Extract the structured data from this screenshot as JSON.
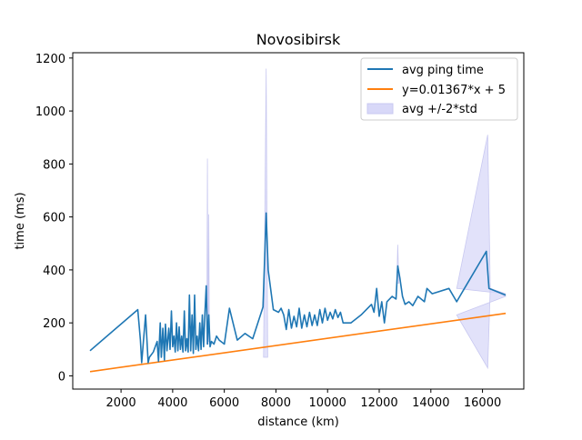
{
  "chart_data": {
    "type": "line",
    "title": "Novosibirsk",
    "xlabel": "distance (km)",
    "ylabel": "time (ms)",
    "xlim": [
      130,
      17600
    ],
    "ylim": [
      -50,
      1220
    ],
    "xticks": [
      2000,
      4000,
      6000,
      8000,
      10000,
      12000,
      14000,
      16000
    ],
    "yticks": [
      0,
      200,
      400,
      600,
      800,
      1000,
      1200
    ],
    "grid": false,
    "legend_position": "top-right",
    "colors": {
      "avg": "#1f77b4",
      "fit": "#ff7f0e",
      "band_fill": "#d8d8f8",
      "band_edge": "#c8c8f0"
    },
    "series": [
      {
        "name": "avg ping time",
        "points": [
          [
            800,
            95
          ],
          [
            2650,
            250
          ],
          [
            2750,
            135
          ],
          [
            2800,
            50
          ],
          [
            2950,
            230
          ],
          [
            3050,
            50
          ],
          [
            3100,
            70
          ],
          [
            3250,
            90
          ],
          [
            3400,
            130
          ],
          [
            3450,
            55
          ],
          [
            3520,
            200
          ],
          [
            3560,
            70
          ],
          [
            3620,
            180
          ],
          [
            3680,
            60
          ],
          [
            3720,
            195
          ],
          [
            3780,
            95
          ],
          [
            3850,
            180
          ],
          [
            3900,
            100
          ],
          [
            3950,
            245
          ],
          [
            4000,
            110
          ],
          [
            4050,
            150
          ],
          [
            4100,
            90
          ],
          [
            4150,
            200
          ],
          [
            4200,
            95
          ],
          [
            4250,
            185
          ],
          [
            4300,
            100
          ],
          [
            4350,
            150
          ],
          [
            4400,
            90
          ],
          [
            4450,
            245
          ],
          [
            4500,
            95
          ],
          [
            4550,
            140
          ],
          [
            4600,
            90
          ],
          [
            4650,
            305
          ],
          [
            4700,
            95
          ],
          [
            4750,
            230
          ],
          [
            4800,
            85
          ],
          [
            4850,
            305
          ],
          [
            4900,
            100
          ],
          [
            4950,
            150
          ],
          [
            5000,
            95
          ],
          [
            5050,
            200
          ],
          [
            5100,
            100
          ],
          [
            5150,
            230
          ],
          [
            5200,
            110
          ],
          [
            5250,
            240
          ],
          [
            5300,
            340
          ],
          [
            5350,
            120
          ],
          [
            5400,
            230
          ],
          [
            5450,
            110
          ],
          [
            5500,
            130
          ],
          [
            5600,
            120
          ],
          [
            5700,
            150
          ],
          [
            5800,
            135
          ],
          [
            6000,
            120
          ],
          [
            6200,
            255
          ],
          [
            6500,
            135
          ],
          [
            6800,
            160
          ],
          [
            7100,
            140
          ],
          [
            7500,
            260
          ],
          [
            7620,
            615
          ],
          [
            7700,
            400
          ],
          [
            7900,
            250
          ],
          [
            8100,
            240
          ],
          [
            8200,
            255
          ],
          [
            8300,
            230
          ],
          [
            8400,
            175
          ],
          [
            8500,
            250
          ],
          [
            8600,
            180
          ],
          [
            8700,
            225
          ],
          [
            8800,
            185
          ],
          [
            8900,
            255
          ],
          [
            9000,
            180
          ],
          [
            9100,
            230
          ],
          [
            9200,
            185
          ],
          [
            9300,
            240
          ],
          [
            9400,
            190
          ],
          [
            9500,
            230
          ],
          [
            9600,
            190
          ],
          [
            9700,
            250
          ],
          [
            9800,
            200
          ],
          [
            9900,
            255
          ],
          [
            10000,
            210
          ],
          [
            10100,
            240
          ],
          [
            10200,
            215
          ],
          [
            10300,
            250
          ],
          [
            10400,
            220
          ],
          [
            10500,
            240
          ],
          [
            10600,
            200
          ],
          [
            10900,
            200
          ],
          [
            11300,
            230
          ],
          [
            11700,
            270
          ],
          [
            11800,
            240
          ],
          [
            11900,
            330
          ],
          [
            12000,
            225
          ],
          [
            12100,
            280
          ],
          [
            12200,
            200
          ],
          [
            12300,
            280
          ],
          [
            12500,
            300
          ],
          [
            12650,
            290
          ],
          [
            12720,
            415
          ],
          [
            12800,
            370
          ],
          [
            12900,
            300
          ],
          [
            13000,
            270
          ],
          [
            13150,
            280
          ],
          [
            13300,
            265
          ],
          [
            13500,
            300
          ],
          [
            13750,
            280
          ],
          [
            13850,
            330
          ],
          [
            14050,
            310
          ],
          [
            14700,
            330
          ],
          [
            15000,
            280
          ],
          [
            15300,
            330
          ],
          [
            16150,
            470
          ],
          [
            16250,
            330
          ],
          [
            16900,
            305
          ]
        ]
      },
      {
        "name": "y=0.01367*x + 5",
        "slope": 0.01367,
        "intercept": 5,
        "x_range": [
          800,
          16900
        ]
      },
      {
        "name": "avg +/-2*std",
        "spikes": [
          {
            "x": [
              5320,
              5345,
              5370
            ],
            "y": [
              120,
              820,
              120
            ]
          },
          {
            "x": [
              5380,
              5400,
              5420
            ],
            "y": [
              130,
              610,
              130
            ]
          },
          {
            "x": [
              7520,
              7620,
              7680
            ],
            "y": [
              70,
              1160,
              70
            ]
          },
          {
            "x": [
              12680,
              12720,
              12760
            ],
            "y": [
              350,
              495,
              350
            ]
          },
          {
            "x": [
              15000,
              16200,
              16300,
              16900
            ],
            "y": [
              330,
              910,
              330,
              310
            ]
          },
          {
            "x": [
              15000,
              16200,
              16300,
              16900
            ],
            "y": [
              230,
              30,
              330,
              300
            ]
          }
        ]
      }
    ]
  }
}
